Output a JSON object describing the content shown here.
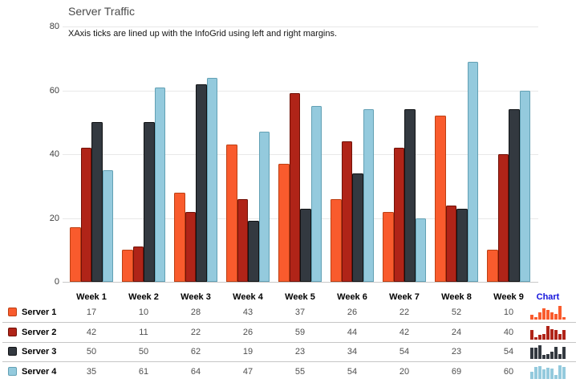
{
  "header": {
    "title": "Server Traffic",
    "subtitle": "XAxis ticks are lined up with the InfoGrid using left and right margins."
  },
  "chart_data": {
    "type": "bar",
    "title": "Server Traffic",
    "categories": [
      "Week 1",
      "Week 2",
      "Week 3",
      "Week 4",
      "Week 5",
      "Week 6",
      "Week 7",
      "Week 8",
      "Week 9"
    ],
    "series": [
      {
        "name": "Server 1",
        "color": "#F95B2D",
        "border": "#BC4014",
        "values": [
          17,
          10,
          28,
          43,
          37,
          26,
          22,
          52,
          10
        ]
      },
      {
        "name": "Server 2",
        "color": "#B02418",
        "border": "#711107",
        "values": [
          42,
          11,
          22,
          26,
          59,
          44,
          42,
          24,
          40
        ]
      },
      {
        "name": "Server 3",
        "color": "#333940",
        "border": "#101214",
        "values": [
          50,
          50,
          62,
          19,
          23,
          34,
          54,
          23,
          54
        ]
      },
      {
        "name": "Server 4",
        "color": "#94CADD",
        "border": "#62A0B4",
        "values": [
          35,
          61,
          64,
          47,
          55,
          54,
          20,
          69,
          60
        ]
      }
    ],
    "xlabel": "",
    "ylabel": "",
    "ylim": [
      0,
      80
    ],
    "yticks": [
      0,
      20,
      40,
      60,
      80
    ],
    "grid": true,
    "legend_position": "table-rows-left"
  },
  "table": {
    "chart_column": {
      "label": "Chart",
      "color": "#1414DC"
    }
  },
  "colors": {
    "gridline": "#E8E8E8",
    "axis_line": "#C9C9C9",
    "row_separator": "#C6C6C6",
    "title_text": "#4A4A4A",
    "value_text": "#4F4F4F"
  }
}
